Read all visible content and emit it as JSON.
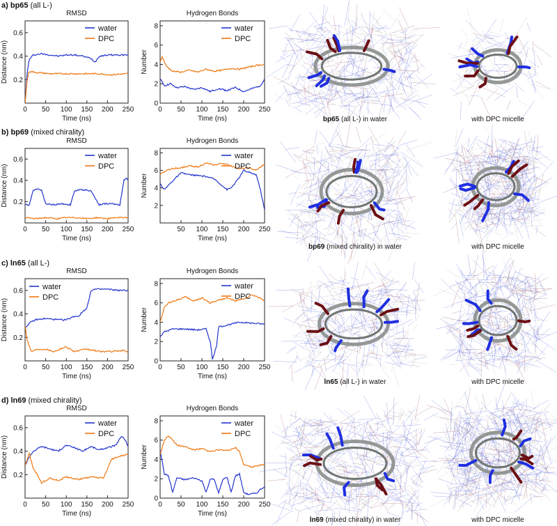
{
  "colors": {
    "water": "#2233cc",
    "dpc": "#ee7711",
    "axis": "#222222",
    "darkred": "#6b0f14",
    "grey": "#8a8f8c"
  },
  "panels": [
    {
      "letter": "a)",
      "name": "bp65",
      "qualifier": "(all L-)",
      "caption_name": "bp65",
      "caption_rest": " (all L-)  in water",
      "caption_right": "with DPC micelle"
    },
    {
      "letter": "b)",
      "name": "bp69",
      "qualifier": "(mixed chirality)",
      "caption_name": "bp69",
      "caption_rest": " (mixed chirality) in water",
      "caption_right": "with DPC micelle"
    },
    {
      "letter": "c)",
      "name": "ln65",
      "qualifier": "(all L-)",
      "caption_name": "ln65",
      "caption_rest": " (all L-) in water",
      "caption_right": "with DPC micelle"
    },
    {
      "letter": "d)",
      "name": "ln69",
      "qualifier": "(mixed chirality)",
      "caption_name": "ln69",
      "caption_rest": " (mixed chirality) in water",
      "caption_right": "with DPC micelle"
    }
  ],
  "chart_data": [
    {
      "type": "line",
      "panel": "a",
      "title": "RMSD",
      "xlabel": "Time (ns)",
      "ylabel": "Distance (nm)",
      "xlim": [
        0,
        250
      ],
      "ylim": [
        0,
        0.7
      ],
      "xticks": [
        0,
        50,
        100,
        150,
        200,
        250
      ],
      "yticks": [
        0.2,
        0.4,
        0.6
      ],
      "legend": [
        "water",
        "DPC"
      ],
      "legend_position": "top-right",
      "series": [
        {
          "name": "water",
          "x": [
            0,
            5,
            10,
            20,
            40,
            60,
            80,
            100,
            120,
            140,
            160,
            170,
            180,
            200,
            220,
            240,
            250
          ],
          "values": [
            0.0,
            0.25,
            0.37,
            0.41,
            0.42,
            0.41,
            0.4,
            0.41,
            0.41,
            0.4,
            0.38,
            0.35,
            0.4,
            0.41,
            0.41,
            0.41,
            0.41
          ]
        },
        {
          "name": "DPC",
          "x": [
            0,
            5,
            10,
            30,
            60,
            90,
            120,
            150,
            180,
            210,
            240,
            250
          ],
          "values": [
            0.0,
            0.2,
            0.27,
            0.26,
            0.25,
            0.25,
            0.25,
            0.25,
            0.25,
            0.24,
            0.25,
            0.25
          ]
        }
      ]
    },
    {
      "type": "line",
      "panel": "a",
      "title": "Hydrogen Bonds",
      "xlabel": "Time (ns)",
      "ylabel": "Number",
      "xlim": [
        0,
        250
      ],
      "ylim": [
        0,
        8.5
      ],
      "xticks": [
        0,
        50,
        100,
        150,
        200,
        250
      ],
      "yticks": [
        0,
        2,
        4,
        6,
        8
      ],
      "legend": [
        "water",
        "DPC"
      ],
      "legend_position": "top-right",
      "series": [
        {
          "name": "water",
          "x": [
            0,
            10,
            25,
            40,
            60,
            80,
            100,
            120,
            140,
            160,
            180,
            200,
            220,
            240,
            250
          ],
          "values": [
            2.5,
            1.8,
            2.0,
            1.6,
            1.7,
            1.4,
            1.6,
            1.2,
            1.5,
            1.3,
            1.6,
            1.2,
            1.5,
            1.8,
            2.5
          ]
        },
        {
          "name": "DPC",
          "x": [
            0,
            5,
            15,
            30,
            50,
            70,
            90,
            110,
            130,
            150,
            170,
            190,
            210,
            230,
            250
          ],
          "values": [
            4.3,
            4.8,
            3.8,
            3.3,
            3.2,
            3.4,
            3.2,
            3.5,
            3.3,
            3.4,
            3.6,
            3.5,
            3.7,
            3.9,
            4.0
          ]
        }
      ]
    },
    {
      "type": "line",
      "panel": "b",
      "title": "RMSD",
      "xlabel": "Time (ns)",
      "ylabel": "Distance (nm)",
      "xlim": [
        0,
        250
      ],
      "ylim": [
        0,
        0.7
      ],
      "xticks": [
        0,
        50,
        100,
        150,
        200,
        250
      ],
      "yticks": [
        0.2,
        0.4,
        0.6
      ],
      "legend": [
        "water",
        "DPC"
      ],
      "legend_position": "top-right",
      "series": [
        {
          "name": "water",
          "x": [
            0,
            10,
            20,
            30,
            40,
            50,
            70,
            90,
            110,
            120,
            130,
            150,
            160,
            180,
            190,
            210,
            230,
            240,
            245,
            250
          ],
          "values": [
            0.17,
            0.17,
            0.31,
            0.32,
            0.31,
            0.18,
            0.17,
            0.18,
            0.17,
            0.3,
            0.31,
            0.31,
            0.3,
            0.17,
            0.18,
            0.18,
            0.17,
            0.4,
            0.42,
            0.41
          ]
        },
        {
          "name": "DPC",
          "x": [
            0,
            25,
            50,
            75,
            100,
            125,
            150,
            175,
            200,
            225,
            250
          ],
          "values": [
            0.05,
            0.04,
            0.05,
            0.04,
            0.05,
            0.05,
            0.04,
            0.05,
            0.04,
            0.05,
            0.05
          ]
        }
      ]
    },
    {
      "type": "line",
      "panel": "b",
      "title": "Hydrogen Bonds",
      "xlabel": "Time (ns)",
      "ylabel": "Number",
      "xlim": [
        0,
        250
      ],
      "ylim": [
        0,
        8.5
      ],
      "xticks": [
        50,
        100,
        150,
        200,
        250
      ],
      "yticks": [
        2,
        4,
        6,
        8
      ],
      "legend": [
        "water",
        "DPC"
      ],
      "legend_position": "top-right",
      "series": [
        {
          "name": "water",
          "x": [
            0,
            10,
            30,
            50,
            70,
            90,
            110,
            130,
            150,
            160,
            170,
            190,
            200,
            210,
            230,
            240,
            250
          ],
          "values": [
            4.5,
            3.8,
            4.8,
            5.7,
            5.5,
            5.4,
            5.3,
            5.0,
            4.2,
            3.8,
            4.0,
            5.2,
            6.0,
            5.8,
            5.5,
            3.8,
            1.5
          ]
        },
        {
          "name": "DPC",
          "x": [
            0,
            15,
            30,
            50,
            70,
            90,
            110,
            130,
            150,
            170,
            190,
            210,
            230,
            250
          ],
          "values": [
            5.5,
            6.0,
            6.2,
            6.3,
            6.5,
            6.4,
            6.8,
            6.6,
            6.8,
            6.5,
            6.2,
            6.3,
            6.0,
            6.7
          ]
        }
      ]
    },
    {
      "type": "line",
      "panel": "c",
      "title": "RMSD",
      "xlabel": "Time (ns)",
      "ylabel": "Distance (nm)",
      "xlim": [
        0,
        250
      ],
      "ylim": [
        0,
        0.7
      ],
      "xticks": [
        0,
        50,
        100,
        150,
        200,
        250
      ],
      "yticks": [
        0.2,
        0.4,
        0.6
      ],
      "legend": [
        "water",
        "DPC"
      ],
      "legend_position": "top-left",
      "series": [
        {
          "name": "water",
          "x": [
            0,
            10,
            25,
            50,
            80,
            100,
            120,
            130,
            140,
            150,
            160,
            170,
            200,
            230,
            250
          ],
          "values": [
            0.28,
            0.32,
            0.35,
            0.36,
            0.35,
            0.35,
            0.38,
            0.38,
            0.42,
            0.45,
            0.6,
            0.61,
            0.61,
            0.6,
            0.6
          ]
        },
        {
          "name": "DPC",
          "x": [
            0,
            5,
            15,
            30,
            50,
            70,
            100,
            120,
            150,
            180,
            210,
            240,
            250
          ],
          "values": [
            0.3,
            0.18,
            0.08,
            0.1,
            0.1,
            0.08,
            0.12,
            0.08,
            0.1,
            0.08,
            0.08,
            0.09,
            0.07
          ]
        }
      ]
    },
    {
      "type": "line",
      "panel": "c",
      "title": "Hydrogen Bonds",
      "xlabel": "Time (ns)",
      "ylabel": "Number",
      "xlim": [
        0,
        250
      ],
      "ylim": [
        0,
        8.5
      ],
      "xticks": [
        0,
        50,
        100,
        150,
        200,
        250
      ],
      "yticks": [
        0,
        2,
        4,
        6,
        8
      ],
      "legend": [
        "water",
        "DPC"
      ],
      "legend_position": "top-right",
      "series": [
        {
          "name": "water",
          "x": [
            0,
            10,
            30,
            60,
            90,
            110,
            120,
            125,
            130,
            135,
            140,
            160,
            190,
            220,
            250
          ],
          "values": [
            2.5,
            3.0,
            3.3,
            3.3,
            3.2,
            3.3,
            2.0,
            0.2,
            0.8,
            1.5,
            3.5,
            3.7,
            4.0,
            3.9,
            3.8
          ]
        },
        {
          "name": "DPC",
          "x": [
            0,
            10,
            20,
            40,
            60,
            80,
            100,
            120,
            140,
            160,
            180,
            200,
            220,
            240,
            250
          ],
          "values": [
            4.0,
            5.5,
            6.0,
            6.3,
            6.6,
            6.2,
            6.5,
            6.0,
            6.3,
            6.5,
            6.2,
            6.4,
            6.8,
            6.5,
            6.2
          ]
        }
      ]
    },
    {
      "type": "line",
      "panel": "d",
      "title": "RMSD",
      "xlabel": "Time (ns)",
      "ylabel": "Distance (nm)",
      "xlim": [
        0,
        250
      ],
      "ylim": [
        0,
        0.7
      ],
      "xticks": [
        0,
        50,
        100,
        150,
        200,
        250
      ],
      "yticks": [
        0.2,
        0.4,
        0.6
      ],
      "legend": [
        "water",
        "DPC"
      ],
      "legend_position": "top-right",
      "series": [
        {
          "name": "water",
          "x": [
            0,
            10,
            20,
            40,
            60,
            80,
            100,
            120,
            140,
            160,
            180,
            200,
            220,
            235,
            245,
            250
          ],
          "values": [
            0.28,
            0.35,
            0.4,
            0.44,
            0.42,
            0.4,
            0.45,
            0.43,
            0.4,
            0.44,
            0.41,
            0.43,
            0.45,
            0.53,
            0.48,
            0.44
          ]
        },
        {
          "name": "DPC",
          "x": [
            0,
            10,
            20,
            30,
            40,
            60,
            80,
            100,
            130,
            160,
            190,
            200,
            210,
            230,
            250
          ],
          "values": [
            0.28,
            0.38,
            0.25,
            0.2,
            0.13,
            0.17,
            0.15,
            0.18,
            0.16,
            0.18,
            0.17,
            0.25,
            0.33,
            0.36,
            0.37
          ]
        }
      ]
    },
    {
      "type": "line",
      "panel": "d",
      "title": "Hydrogen Bonds",
      "xlabel": "Time (ns)",
      "ylabel": "Number",
      "xlim": [
        0,
        250
      ],
      "ylim": [
        0,
        8.5
      ],
      "xticks": [
        0,
        50,
        100,
        150,
        200,
        250
      ],
      "yticks": [
        0,
        2,
        4,
        6,
        8
      ],
      "legend": [
        "water",
        "DPC"
      ],
      "legend_position": "top-right",
      "series": [
        {
          "name": "water",
          "x": [
            0,
            10,
            20,
            30,
            40,
            50,
            60,
            80,
            100,
            110,
            120,
            130,
            140,
            150,
            160,
            170,
            180,
            190,
            200,
            210,
            230,
            240,
            250
          ],
          "values": [
            5.0,
            2.5,
            2.3,
            0.6,
            2.1,
            2.0,
            1.9,
            2.1,
            1.8,
            0.6,
            2.0,
            1.9,
            0.5,
            1.9,
            2.2,
            0.6,
            2.3,
            2.5,
            0.6,
            0.4,
            0.5,
            0.9,
            1.2
          ]
        },
        {
          "name": "DPC",
          "x": [
            0,
            10,
            20,
            40,
            60,
            80,
            100,
            120,
            140,
            160,
            180,
            190,
            200,
            220,
            240,
            250
          ],
          "values": [
            4.5,
            6.0,
            6.5,
            5.5,
            5.3,
            5.0,
            5.1,
            4.8,
            5.0,
            4.9,
            5.2,
            4.8,
            3.5,
            3.2,
            3.4,
            3.5
          ]
        }
      ]
    }
  ]
}
